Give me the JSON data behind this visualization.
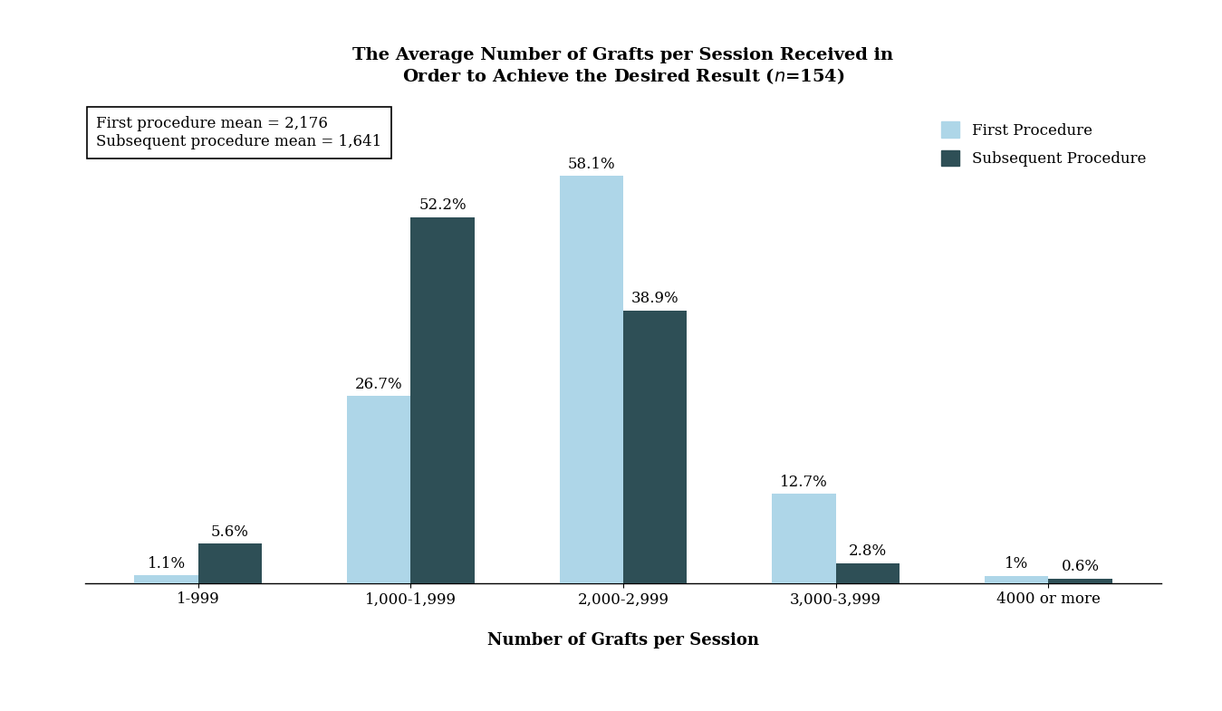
{
  "categories": [
    "1-999",
    "1,000-1,999",
    "2,000-2,999",
    "3,000-3,999",
    "4000 or more"
  ],
  "first_procedure": [
    1.1,
    26.7,
    58.1,
    12.7,
    1.0
  ],
  "subsequent_procedure": [
    5.6,
    52.2,
    38.9,
    2.8,
    0.6
  ],
  "first_color": "#aed6e8",
  "subsequent_color": "#2e4f56",
  "bar_width": 0.3,
  "xlabel": "Number of Grafts per Session",
  "annotation_first": [
    "1.1%",
    "26.7%",
    "58.1%",
    "12.7%",
    "1%"
  ],
  "annotation_subsequent": [
    "5.6%",
    "52.2%",
    "38.9%",
    "2.8%",
    "0.6%"
  ],
  "legend_label_first": "First Procedure",
  "legend_label_subsequent": "Subsequent Procedure",
  "annotation_mean1": "First procedure mean = 2,176",
  "annotation_mean2": "Subsequent procedure mean = 1,641",
  "background_color": "#ffffff",
  "ylim": [
    0,
    68
  ],
  "title_line1": "The Average Number of Grafts per Session Received in",
  "title_line2": "Order to Achieve the Desired Result ("
}
